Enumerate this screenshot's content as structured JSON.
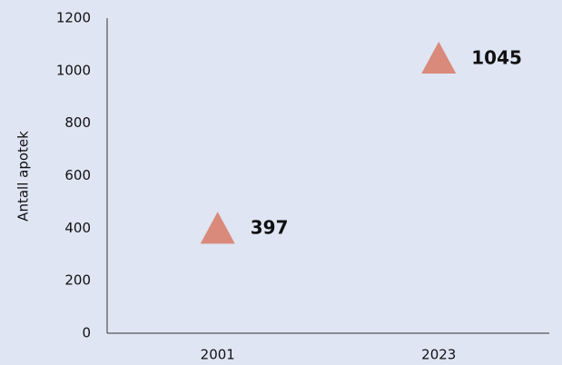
{
  "chart_data": {
    "type": "scatter",
    "y_label": "Antall apotek",
    "categories": [
      "2001",
      "2023"
    ],
    "values": [
      397,
      1045
    ],
    "color": "#d98a7a",
    "marker": "triangle",
    "ylim": [
      0,
      1200
    ],
    "yticks": [
      0,
      200,
      400,
      600,
      800,
      1000,
      1200
    ],
    "grid": false
  }
}
